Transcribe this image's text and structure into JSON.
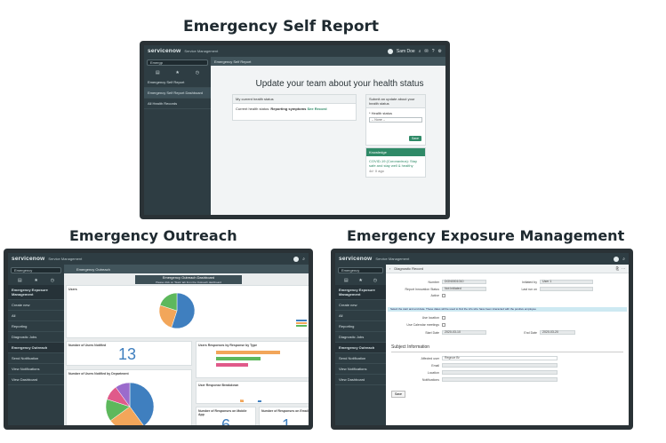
{
  "headings": {
    "self_report": "Emergency Self Report",
    "outreach": "Emergency Outreach",
    "exposure": "Emergency Exposure Management"
  },
  "brand": {
    "logo": "servicenow",
    "sub": "Service Management"
  },
  "self_report": {
    "user": "Sam Doe",
    "filter": "Emergp",
    "nav": [
      "Emergency Self Report",
      "Emergency Self Report Dashboard",
      "All Health Records"
    ],
    "crumb": "Emergency Self Report",
    "title": "Update your team about your health status",
    "health_panel": {
      "header": "My current health status",
      "status_label": "Current health status:",
      "status_value": "Reporting symptoms",
      "link": "See Record"
    },
    "submit_panel": {
      "header": "Submit an update about your health status",
      "field_label": "* Health status",
      "select_value": "-- None --",
      "button": "Save"
    },
    "knowledge": {
      "header": "Knowledge",
      "link": "COVID-19 (Coronavirus): Stay safe and stay well & healthy",
      "meta": "4d· 0 ago"
    }
  },
  "outreach": {
    "filter": "Emergency",
    "crumb": "Emergency Outreach",
    "nav": [
      "Emergency Exposure Management",
      "Create new",
      "All",
      "Reporting",
      "Diagnostic Jobs",
      "Emergency Outreach",
      "Send Notification",
      "View Notifications",
      "View Dashboard"
    ],
    "dash_title": "Emergency Outreach Dashboard",
    "dash_sub": "Please click on 'Stats' tab from the Outreach dashboard",
    "cards": {
      "users": "Users",
      "notified": "Number of Users Notified",
      "notified_value": "13",
      "responses_type": "Users Responses by Response by Type",
      "by_dept": "Number of Users Notified by Department",
      "breakdown": "User Response Breakdown",
      "no_response": "Number of Responses on Mobile App",
      "no_response_value": "6",
      "email_response": "Number of Responses on Email",
      "email_response_value": "1"
    },
    "pie_users": [
      {
        "label": "",
        "value": 55,
        "color": "#3f7fbf"
      },
      {
        "label": "",
        "value": 25,
        "color": "#f2a65a"
      },
      {
        "label": "",
        "value": 20,
        "color": "#5db85c"
      }
    ],
    "pie_dept": [
      {
        "label": "",
        "value": 40,
        "color": "#3f7fbf"
      },
      {
        "label": "",
        "value": 25,
        "color": "#f2a65a"
      },
      {
        "label": "",
        "value": 15,
        "color": "#5db85c"
      },
      {
        "label": "",
        "value": 10,
        "color": "#e05a8a"
      },
      {
        "label": "",
        "value": 10,
        "color": "#9b6bcc"
      }
    ],
    "bars": [
      {
        "value": 80,
        "color": "#f2a65a"
      },
      {
        "value": 55,
        "color": "#5db85c"
      },
      {
        "value": 40,
        "color": "#e05a8a"
      }
    ]
  },
  "exposure": {
    "filter": "Emergency",
    "nav": [
      "Emergency Exposure Management",
      "Create new",
      "All",
      "Reporting",
      "Diagnostic Jobs",
      "Emergency Outreach",
      "Send Notification",
      "View Notifications",
      "View Dashboard"
    ],
    "record_title": "Diagnostic Record",
    "fields": [
      {
        "label": "Number",
        "value": "DGN0001010"
      },
      {
        "label": "Report Innovation Status",
        "value": "Not Initiated"
      },
      {
        "label": "Active",
        "value": ""
      }
    ],
    "right_fields": [
      {
        "label": "Initiated by",
        "value": "User 1"
      },
      {
        "label": "Last run on",
        "value": ""
      }
    ],
    "info": "Select the start and end date. These dates will be used to find the info who have been interacted with the positive employee",
    "checks": [
      "Use location",
      "Use Calendar meetings"
    ],
    "start_label": "Start Date",
    "start_value": "2020-03-10",
    "end_label": "End Date",
    "end_value": "2020-03-20",
    "section": "Subject Information",
    "subject_fields": [
      "Affected user",
      "Email",
      "Location",
      "Notifications"
    ],
    "subject_value": "Regnoe Br",
    "save": "Save"
  }
}
